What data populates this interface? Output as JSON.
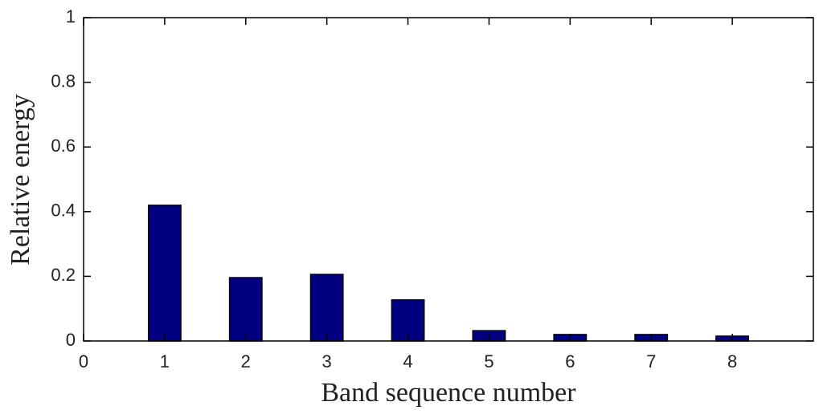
{
  "chart_data": {
    "type": "bar",
    "x_label": "Band sequence number",
    "y_label": "Relative energy",
    "x": [
      1,
      2,
      3,
      4,
      5,
      6,
      7,
      8
    ],
    "values": [
      0.42,
      0.196,
      0.206,
      0.127,
      0.032,
      0.02,
      0.02,
      0.015
    ],
    "color": "#000080",
    "xlim": [
      0,
      9
    ],
    "xticks": [
      0,
      1,
      2,
      3,
      4,
      5,
      6,
      7,
      8
    ],
    "ylim": [
      0,
      1
    ],
    "yticks": [
      0,
      0.2,
      0.4,
      0.6,
      0.8,
      1
    ],
    "grid": false
  }
}
